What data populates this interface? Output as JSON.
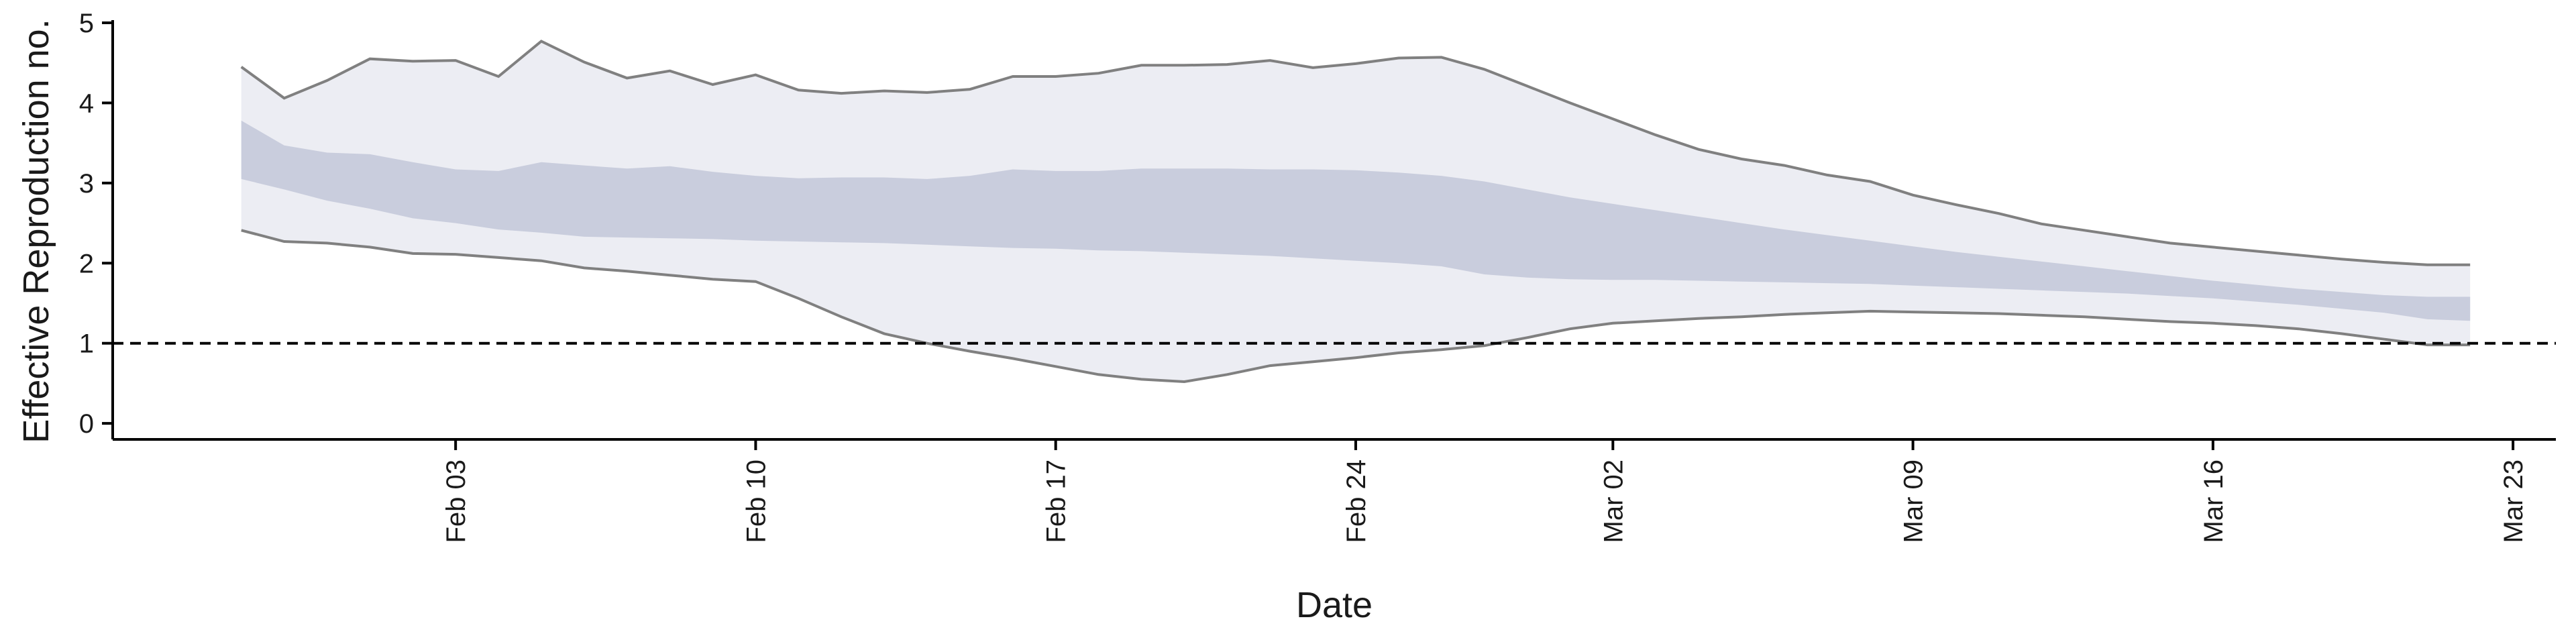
{
  "chart_data": {
    "type": "area",
    "title": "",
    "xlabel": "Date",
    "ylabel": "Effective Reproduction no.",
    "x_type": "date",
    "xlim": [
      "2021-01-26",
      "2021-03-24"
    ],
    "ylim": [
      -0.2,
      5
    ],
    "x_ticks": [
      {
        "date": "2021-02-03",
        "label": "Feb 03"
      },
      {
        "date": "2021-02-10",
        "label": "Feb 10"
      },
      {
        "date": "2021-02-17",
        "label": "Feb 17"
      },
      {
        "date": "2021-02-24",
        "label": "Feb 24"
      },
      {
        "date": "2021-03-02",
        "label": "Mar 02"
      },
      {
        "date": "2021-03-09",
        "label": "Mar 09"
      },
      {
        "date": "2021-03-16",
        "label": "Mar 16"
      },
      {
        "date": "2021-03-23",
        "label": "Mar 23"
      }
    ],
    "y_ticks": [
      0,
      1,
      2,
      3,
      4,
      5
    ],
    "reference_line": {
      "y": 1,
      "style": "dashed",
      "color": "#000000"
    },
    "grid": false,
    "colors": {
      "outer_band": "#ecedf3",
      "inner_band": "#c9cddd",
      "outer_edge": "#808080"
    },
    "series": {
      "x": [
        "2021-01-29",
        "2021-01-30",
        "2021-01-31",
        "2021-02-01",
        "2021-02-02",
        "2021-02-03",
        "2021-02-04",
        "2021-02-05",
        "2021-02-06",
        "2021-02-07",
        "2021-02-08",
        "2021-02-09",
        "2021-02-10",
        "2021-02-11",
        "2021-02-12",
        "2021-02-13",
        "2021-02-14",
        "2021-02-15",
        "2021-02-16",
        "2021-02-17",
        "2021-02-18",
        "2021-02-19",
        "2021-02-20",
        "2021-02-21",
        "2021-02-22",
        "2021-02-23",
        "2021-02-24",
        "2021-02-25",
        "2021-02-26",
        "2021-02-27",
        "2021-02-28",
        "2021-03-01",
        "2021-03-02",
        "2021-03-03",
        "2021-03-04",
        "2021-03-05",
        "2021-03-06",
        "2021-03-07",
        "2021-03-08",
        "2021-03-09",
        "2021-03-10",
        "2021-03-11",
        "2021-03-12",
        "2021-03-13",
        "2021-03-14",
        "2021-03-15",
        "2021-03-16",
        "2021-03-17",
        "2021-03-18",
        "2021-03-19",
        "2021-03-20",
        "2021-03-21",
        "2021-03-22"
      ],
      "outer_upper": [
        4.45,
        4.06,
        4.28,
        4.55,
        4.52,
        4.53,
        4.33,
        4.77,
        4.51,
        4.31,
        4.4,
        4.23,
        4.35,
        4.16,
        4.12,
        4.15,
        4.13,
        4.17,
        4.33,
        4.33,
        4.37,
        4.47,
        4.47,
        4.48,
        4.53,
        4.44,
        4.49,
        4.56,
        4.57,
        4.42,
        4.21,
        4.0,
        3.8,
        3.6,
        3.42,
        3.3,
        3.22,
        3.1,
        3.02,
        2.85,
        2.73,
        2.62,
        2.49,
        2.41,
        2.33,
        2.25,
        2.2,
        2.15,
        2.1,
        2.05,
        2.01,
        1.98,
        1.98
      ],
      "inner_upper": [
        3.78,
        3.47,
        3.38,
        3.36,
        3.26,
        3.17,
        3.15,
        3.26,
        3.22,
        3.18,
        3.21,
        3.14,
        3.09,
        3.06,
        3.07,
        3.07,
        3.05,
        3.09,
        3.17,
        3.15,
        3.15,
        3.18,
        3.18,
        3.18,
        3.17,
        3.17,
        3.16,
        3.13,
        3.09,
        3.02,
        2.92,
        2.82,
        2.74,
        2.66,
        2.58,
        2.5,
        2.42,
        2.35,
        2.28,
        2.21,
        2.14,
        2.08,
        2.02,
        1.96,
        1.9,
        1.84,
        1.78,
        1.73,
        1.68,
        1.64,
        1.6,
        1.58,
        1.58
      ],
      "inner_lower": [
        3.05,
        2.92,
        2.78,
        2.68,
        2.56,
        2.5,
        2.42,
        2.38,
        2.33,
        2.32,
        2.31,
        2.3,
        2.28,
        2.27,
        2.26,
        2.25,
        2.23,
        2.21,
        2.19,
        2.18,
        2.16,
        2.15,
        2.13,
        2.11,
        2.09,
        2.06,
        2.03,
        2.0,
        1.96,
        1.86,
        1.82,
        1.8,
        1.79,
        1.79,
        1.78,
        1.77,
        1.76,
        1.75,
        1.74,
        1.72,
        1.7,
        1.68,
        1.66,
        1.64,
        1.62,
        1.59,
        1.56,
        1.52,
        1.48,
        1.43,
        1.38,
        1.3,
        1.28
      ],
      "outer_lower": [
        2.41,
        2.27,
        2.25,
        2.2,
        2.12,
        2.11,
        2.07,
        2.03,
        1.94,
        1.9,
        1.85,
        1.8,
        1.77,
        1.56,
        1.33,
        1.12,
        1.0,
        0.9,
        0.81,
        0.71,
        0.61,
        0.55,
        0.52,
        0.61,
        0.72,
        0.77,
        0.82,
        0.88,
        0.92,
        0.97,
        1.07,
        1.18,
        1.25,
        1.28,
        1.31,
        1.33,
        1.36,
        1.38,
        1.4,
        1.39,
        1.38,
        1.37,
        1.35,
        1.33,
        1.3,
        1.27,
        1.25,
        1.22,
        1.18,
        1.12,
        1.05,
        0.98,
        0.98
      ]
    }
  }
}
